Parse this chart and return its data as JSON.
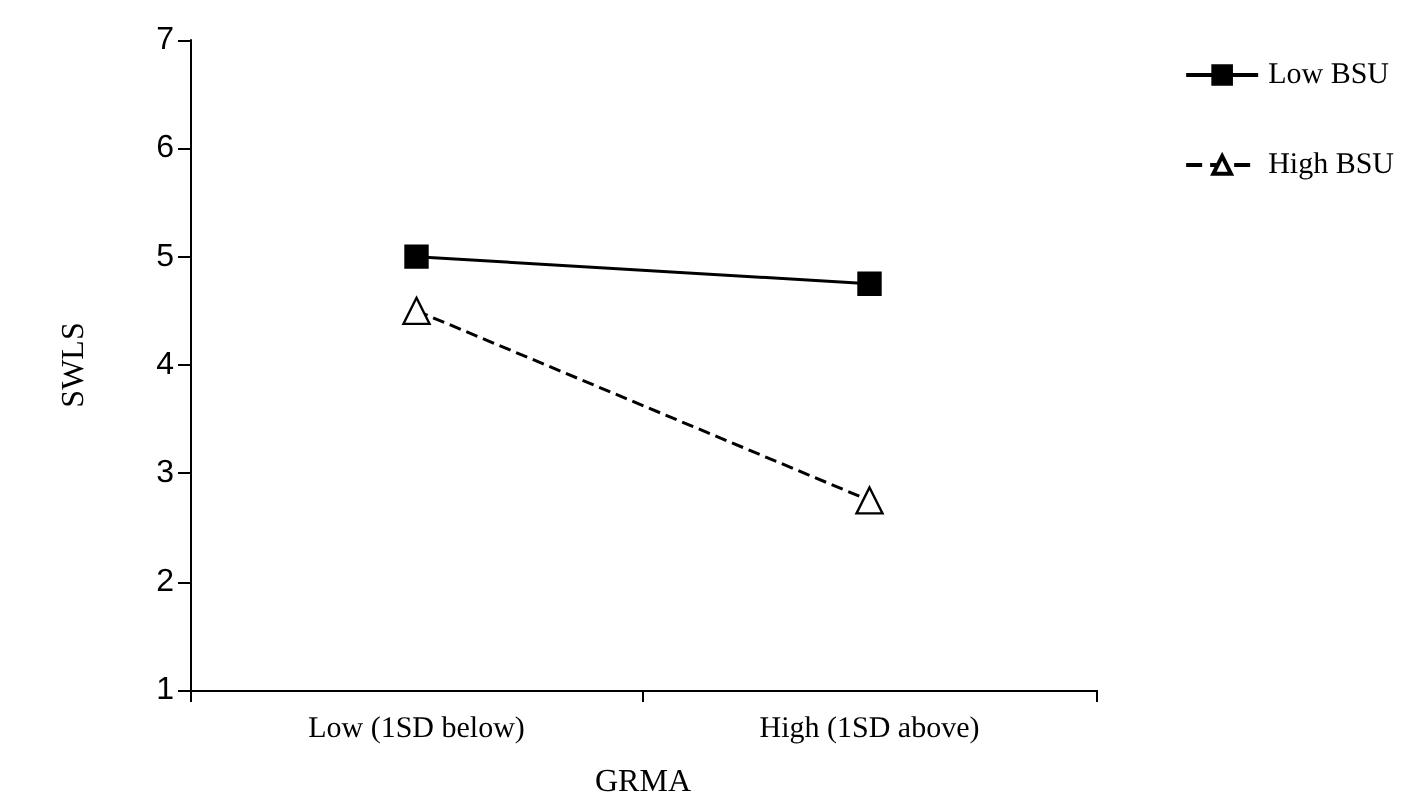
{
  "chart_data": {
    "type": "line",
    "xlabel": "GRMA",
    "ylabel": "SWLS",
    "categories": [
      "Low (1SD below)",
      "High (1SD above)"
    ],
    "series": [
      {
        "name": "Low BSU",
        "color": "#000000",
        "values": [
          5.0,
          4.75
        ],
        "marker": "square",
        "line_style": "solid"
      },
      {
        "name": "High BSU",
        "color": "#000000",
        "values": [
          4.5,
          2.75
        ],
        "marker": "triangle",
        "line_style": "dashed"
      }
    ],
    "ylim": [
      1,
      7
    ],
    "yticks": [
      1,
      2,
      3,
      4,
      5,
      6,
      7
    ],
    "grid": false,
    "legend": "top right"
  }
}
